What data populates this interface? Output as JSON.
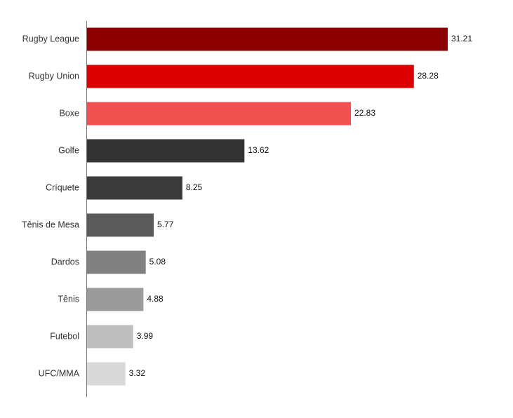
{
  "chart_data": {
    "type": "bar",
    "orientation": "horizontal",
    "title": "",
    "xlabel": "",
    "ylabel": "",
    "grid": false,
    "legend": "none",
    "xlim": [
      0,
      34
    ],
    "categories": [
      "Rugby League",
      "Rugby Union",
      "Boxe",
      "Golfe",
      "Críquete",
      "Tênis de Mesa",
      "Dardos",
      "Tênis",
      "Futebol",
      "UFC/MMA"
    ],
    "values": [
      31.21,
      28.28,
      22.83,
      13.62,
      8.25,
      5.77,
      5.08,
      4.88,
      3.99,
      3.32
    ],
    "value_labels": [
      "31.21",
      "28.28",
      "22.83",
      "13.62",
      "8.25",
      "5.77",
      "5.08",
      "4.88",
      "3.99",
      "3.32"
    ],
    "colors": [
      "#8b0000",
      "#dd0000",
      "#f05050",
      "#333333",
      "#3a3a3a",
      "#5a5a5a",
      "#808080",
      "#9b9b9b",
      "#bebebe",
      "#d9d9d9"
    ]
  }
}
